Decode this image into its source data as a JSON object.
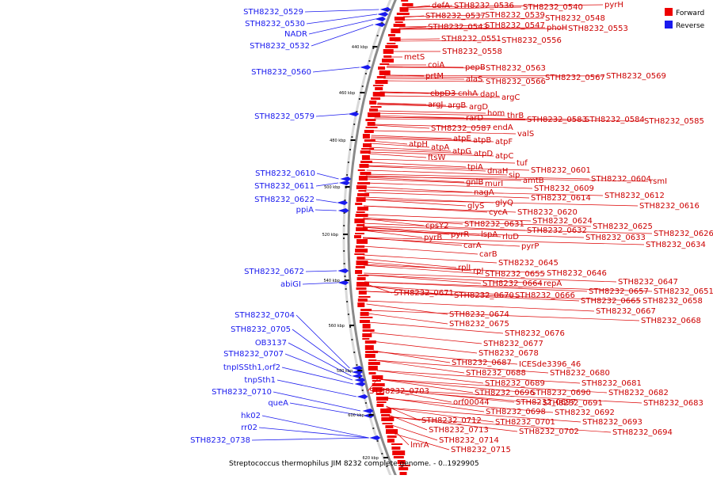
{
  "caption": "Streptococcus thermophilus JIM 8232 complete genome. - 0..1929905",
  "legend": {
    "forward": {
      "label": "Forward",
      "color": "#ee0000"
    },
    "reverse": {
      "label": "Reverse",
      "color": "#1a1aee"
    }
  },
  "scale_labels": [
    "440 kbp",
    "460 kbp",
    "480 kbp",
    "500 kbp",
    "520 kbp",
    "540 kbp",
    "560 kbp",
    "580 kbp",
    "600 kbp",
    "620 kbp"
  ],
  "reverse_labels": [
    "STH8232_0529",
    "STH8232_0530",
    "NADR",
    "STH8232_0532",
    "STH8232_0560",
    "STH8232_0579",
    "STH8232_0610",
    "STH8232_0611",
    "STH8232_0622",
    "ppiA",
    "STH8232_0672",
    "abiGI",
    "STH8232_0704",
    "STH8232_0705",
    "OB3137",
    "STH8232_0707",
    "tnpISSth1,orf2",
    "tnpSth1",
    "STH8232_0710",
    "queA",
    "hk02",
    "rr02",
    "STH8232_0738"
  ],
  "forward_labels": [
    "defA",
    "STH8232_0536",
    "STH8232_0540",
    "pyrH",
    "STH8232_0537",
    "STH8232_0539",
    "STH8232_0548",
    "STH8232_0543",
    "STH8232_0547",
    "phoH",
    "STH8232_0553",
    "STH8232_0551",
    "STH8232_0556",
    "STH8232_0558",
    "metS",
    "coiA",
    "pepB",
    "STH8232_0563",
    "prtM",
    "alaS",
    "STH8232_0566",
    "STH8232_0567",
    "STH8232_0569",
    "cbpD3",
    "cnhA",
    "dapL",
    "argC",
    "argJ",
    "argB",
    "argD",
    "hom",
    "thrB",
    "rarD",
    "STH8232_0583",
    "STH8232_0584",
    "STH8232_0585",
    "STH8232_0587",
    "endA",
    "valS",
    "atpE",
    "atpB",
    "atpF",
    "atpH",
    "atpA",
    "atpG",
    "atpD",
    "atpC",
    "ftsW",
    "tuf",
    "tpiA",
    "dnaH",
    "sip",
    "STH8232_0601",
    "STH8232_0604",
    "rsmI",
    "gnlB",
    "murI",
    "amtB",
    "STH8232_0609",
    "nagA",
    "STH8232_0614",
    "STH8232_0612",
    "glyS",
    "glyQ",
    "STH8232_0616",
    "cycA",
    "STH8232_0620",
    "STH8232_0624",
    "cpsY2",
    "STH8232_0631",
    "STH8232_0625",
    "STH8232_0632",
    "pyrR",
    "lspA",
    "STH8232_0626",
    "rluD",
    "STH8232_0633",
    "pyrB",
    "STH8232_0634",
    "carA",
    "pyrP",
    "carB",
    "STH8232_0645",
    "rplI",
    "rpI",
    "STH8232_0655",
    "STH8232_0646",
    "STH8232_0664",
    "repA",
    "STH8232_0647",
    "STH8232_0657",
    "STH8232_0651",
    "STH8232_0671",
    "STH8232_0670",
    "STH8232_0666",
    "STH8232_0665",
    "STH8232_0658",
    "STH8232_0667",
    "STH8232_0674",
    "STH8232_0668",
    "STH8232_0675",
    "STH8232_0676",
    "STH8232_0677",
    "STH8232_0678",
    "STH8232_0687",
    "ICESde3396_46",
    "STH8232_0688",
    "STH8232_0680",
    "STH8232_0681",
    "STH8232_0689",
    "STH8232_0703",
    "STH8232_0696",
    "STH8232_0690",
    "STH8232_0682",
    "orf00044",
    "STH8232_0697",
    "STH8232_0691",
    "STH8232_0683",
    "STH8232_0698",
    "STH8232_0692",
    "STH8232_0701",
    "STH8232_0693",
    "STH8232_0712",
    "STH8232_0702",
    "STH8232_0694",
    "STH8232_0713",
    "STH8232_0714",
    "lmrA",
    "STH8232_0715"
  ]
}
